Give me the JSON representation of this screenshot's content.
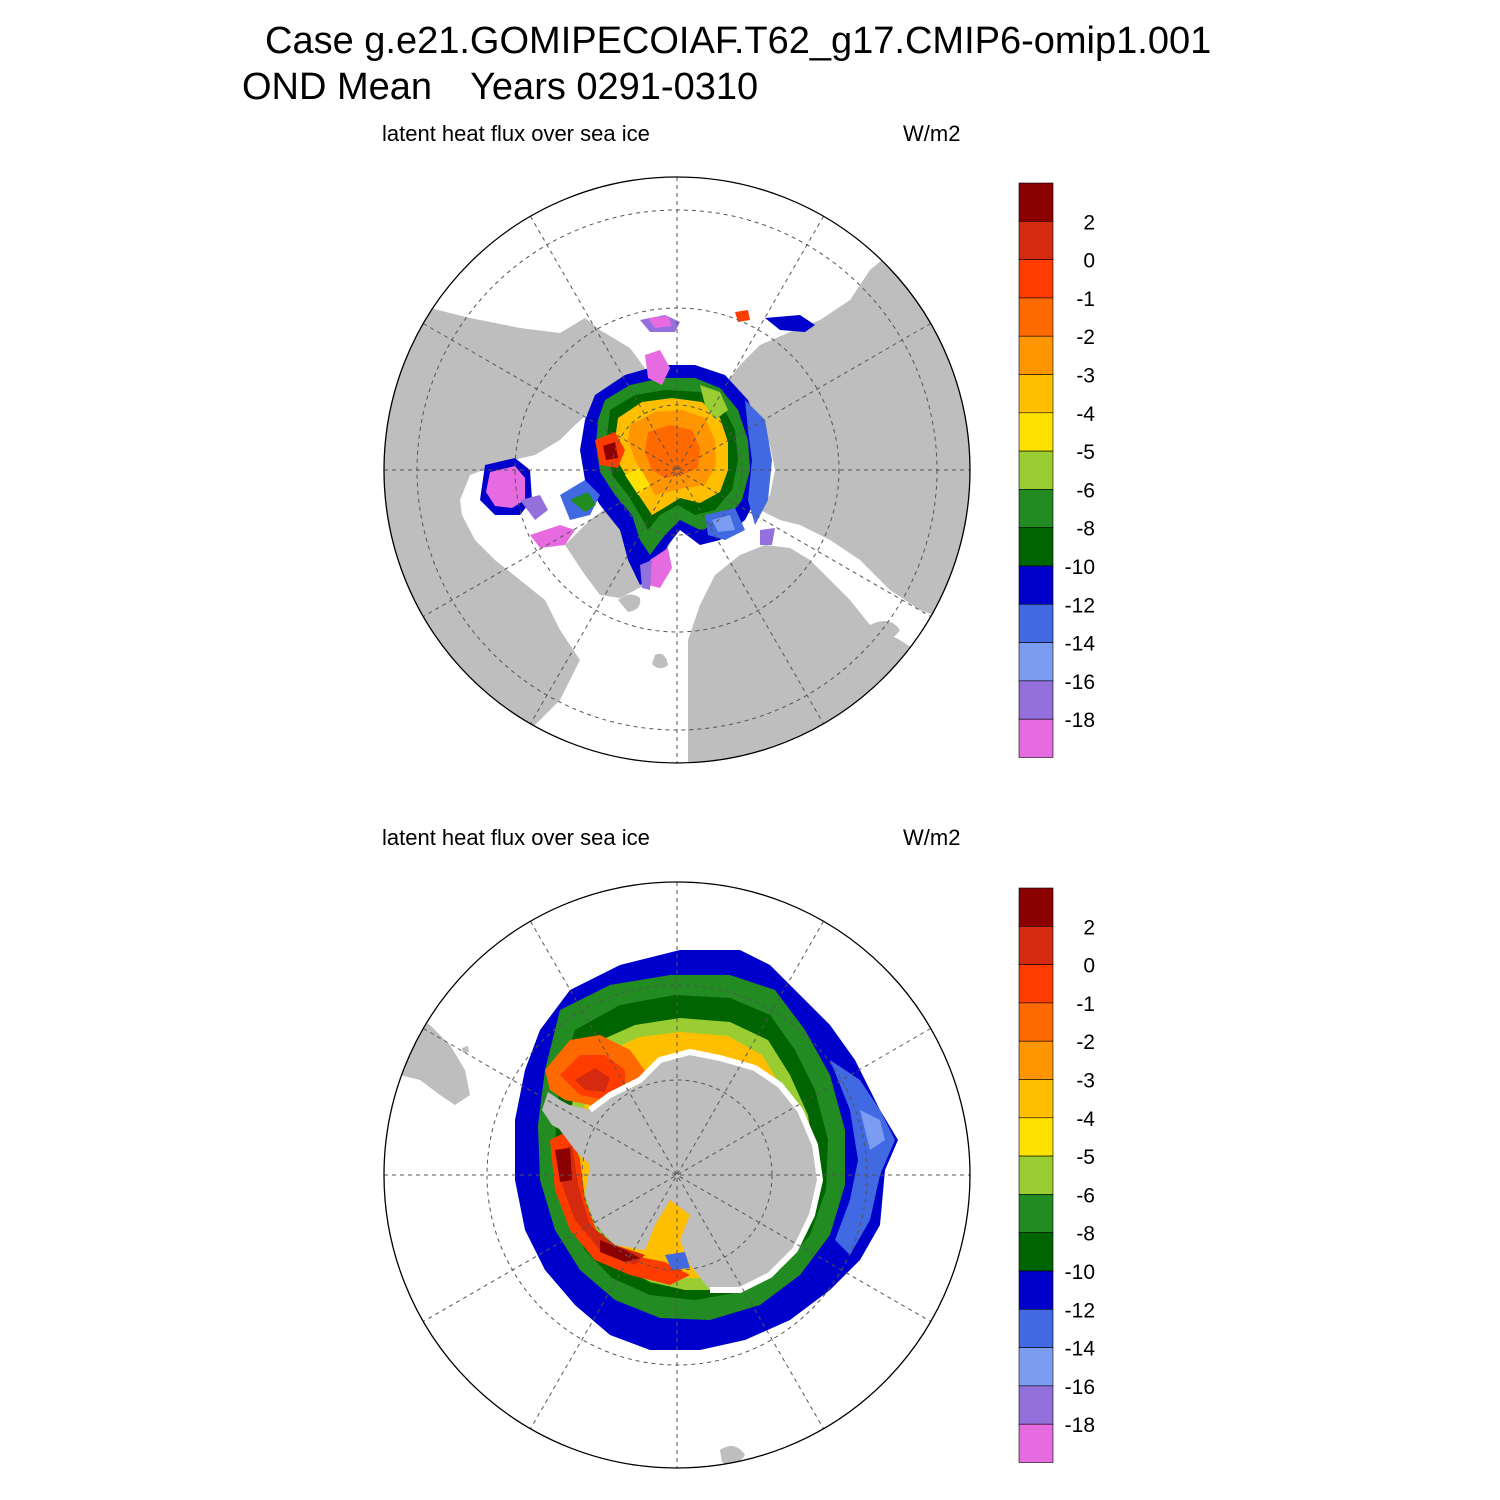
{
  "title": {
    "case_line": "Case g.e21.GOMIPECOIAF.T62_g17.CMIP6-omip1.001",
    "season": "OND Mean",
    "years": "Years 0291-0310"
  },
  "panels": [
    {
      "hemisphere": "NH",
      "variable_label": "latent heat flux over sea ice",
      "units": "W/m2"
    },
    {
      "hemisphere": "SH",
      "variable_label": "latent heat flux over sea ice",
      "units": "W/m2"
    }
  ],
  "colorbar": {
    "labels": [
      "2",
      "0",
      "-1",
      "-2",
      "-3",
      "-4",
      "-5",
      "-6",
      "-8",
      "-10",
      "-12",
      "-14",
      "-16",
      "-18"
    ],
    "colors": [
      "#8b0000",
      "#d42b10",
      "#ff3c00",
      "#ff6a00",
      "#ff9500",
      "#ffbf00",
      "#ffe100",
      "#9acd32",
      "#228b22",
      "#006400",
      "#0000cd",
      "#4169e1",
      "#7b9cf0",
      "#9370db",
      "#e76be0"
    ]
  },
  "colors": {
    "land": "#bebebe",
    "ocean": "#ffffff",
    "grid": "#555555"
  }
}
